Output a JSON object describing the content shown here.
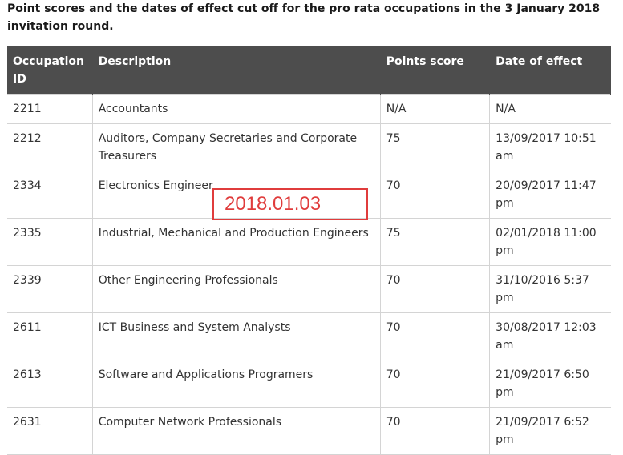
{
  "heading": "Point scores and the dates of effect cut off for the pro rata occupations in the 3 January 2018 invitation round.",
  "table": {
    "headers": [
      "Occupation ID",
      "Description",
      "Points score",
      "Date of effect"
    ],
    "rows": [
      [
        "2211",
        "Accountants",
        "N/A",
        "N/A"
      ],
      [
        "2212",
        "Auditors, Company Secretaries and Corporate Treasurers",
        "75",
        "13/09/2017 10:51 am"
      ],
      [
        "2334",
        "Electronics Engineer",
        "70",
        "20/09/2017 11:47 pm"
      ],
      [
        "2335",
        "Industrial, Mechanical and Production Engineers",
        "75",
        "02/01/2018 11:00 pm"
      ],
      [
        "2339",
        "Other Engineering Professionals",
        "70",
        "31/10/2016 5:37 pm"
      ],
      [
        "2611",
        "ICT Business and System Analysts",
        "70",
        "30/08/2017 12:03 am"
      ],
      [
        "2613",
        "Software and Applications Programers",
        "70",
        "21/09/2017 6:50 pm"
      ],
      [
        "2631",
        "Computer Network Professionals",
        "70",
        "21/09/2017 6:52 pm"
      ]
    ]
  },
  "annotation": {
    "text": "2018.01.03",
    "color": "#e03c3c"
  }
}
